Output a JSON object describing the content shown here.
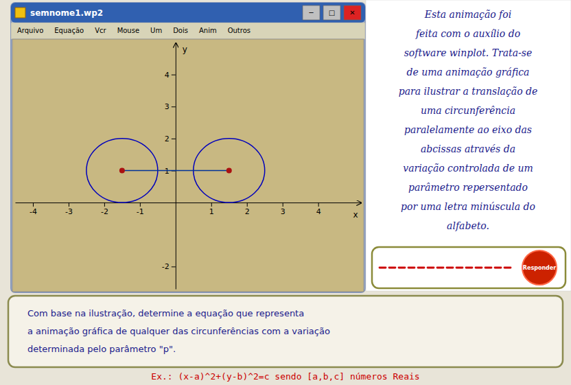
{
  "chart_data": {
    "type": "scatter",
    "title": "semnome1.wp2",
    "xlabel": "x",
    "ylabel": "y",
    "xlim": [
      -4.5,
      5.2
    ],
    "ylim": [
      -2.7,
      5.0
    ],
    "xticks": [
      -4,
      -3,
      -2,
      -1,
      1,
      2,
      3,
      4
    ],
    "yticks": [
      -2,
      1,
      2,
      3,
      4
    ],
    "grid": false,
    "series": [
      {
        "type": "circle",
        "color": "#0000bb",
        "x": [
          -1.5,
          1.5
        ],
        "values": [
          1.0,
          1.0
        ],
        "radius": [
          1.0,
          1.0
        ]
      },
      {
        "type": "line",
        "color": "#003399",
        "x": [
          -1.5,
          1.5
        ],
        "values": [
          1.0,
          1.0
        ]
      },
      {
        "type": "scatter",
        "color": "#aa1111",
        "x": [
          -1.5,
          1.5
        ],
        "values": [
          1.0,
          1.0
        ]
      }
    ],
    "menu_items": [
      "Arquivo",
      "Equação",
      "Vcr",
      "Mouse",
      "Um",
      "Dois",
      "Anim",
      "Outros"
    ],
    "window_buttons": [
      "─",
      "□",
      "✕"
    ],
    "side_text": [
      "Esta animação foi",
      "feita com o auxílio do",
      "software winplot. Trata-se",
      "de uma animação gráfica",
      "para ilustrar a translação de",
      "uma circunferência",
      "paralelamente ao eixo das",
      "abcissas através da",
      "variação controlada de um",
      "parâmetro repersentado",
      "por uma letra minúscula do",
      "alfabeto."
    ],
    "button_label": "Responder",
    "question": [
      "Com base na ilustração, determine a equação que representa",
      "a animação gráfica de qualquer das circunferências com a variação",
      "determinada pelo parâmetro \"p\"."
    ],
    "note": "Ex.: (x-a)^2+(y-b)^2=c sendo [a,b,c] números Reais"
  }
}
